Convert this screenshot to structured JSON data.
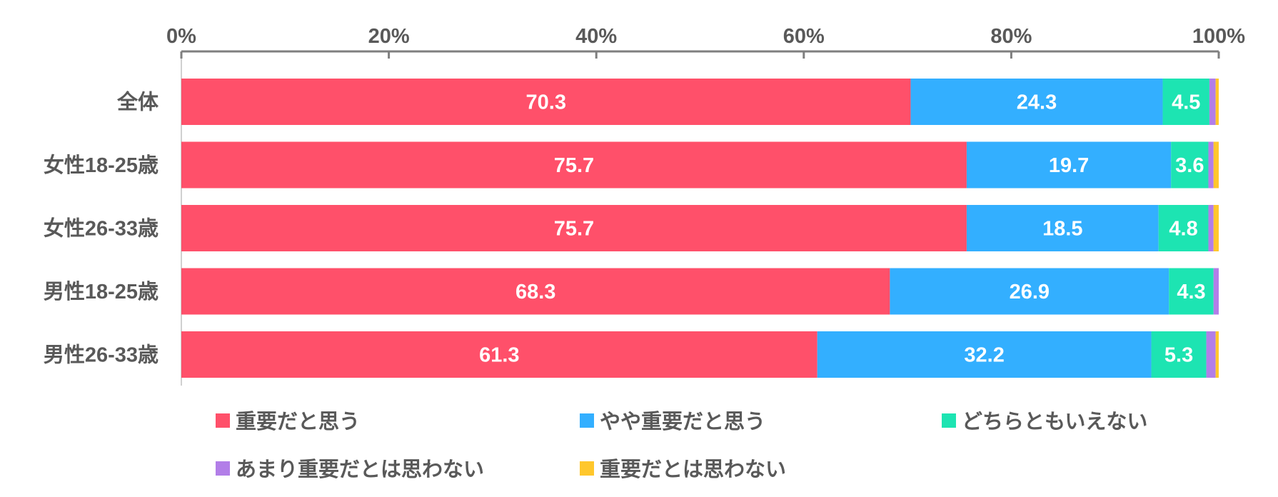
{
  "chart_data": {
    "type": "bar",
    "orientation": "horizontal",
    "stacked": true,
    "percent": true,
    "categories": [
      "全体",
      "女性18-25歳",
      "女性26-33歳",
      "男性18-25歳",
      "男性26-33歳"
    ],
    "series": [
      {
        "name": "重要だと思う",
        "color": "#FF506A",
        "values": [
          70.3,
          75.7,
          75.7,
          68.3,
          61.3
        ],
        "labels": [
          "70.3",
          "75.7",
          "75.7",
          "68.3",
          "61.3"
        ]
      },
      {
        "name": "やや重要だと思う",
        "color": "#33AFFF",
        "values": [
          24.3,
          19.7,
          18.5,
          26.9,
          32.2
        ],
        "labels": [
          "24.3",
          "19.7",
          "18.5",
          "26.9",
          "32.2"
        ]
      },
      {
        "name": "どちらともいえない",
        "color": "#1DE4B2",
        "values": [
          4.5,
          3.6,
          4.8,
          4.3,
          5.3
        ],
        "labels": [
          "4.5",
          "3.6",
          "4.8",
          "4.3",
          "5.3"
        ]
      },
      {
        "name": "あまり重要だとは思わない",
        "color": "#B27EE8",
        "values": [
          0.6,
          0.5,
          0.5,
          0.5,
          0.9
        ],
        "labels": [
          "",
          "",
          "",
          "",
          ""
        ]
      },
      {
        "name": "重要だとは思わない",
        "color": "#FFC72C",
        "values": [
          0.3,
          0.5,
          0.5,
          0.0,
          0.3
        ],
        "labels": [
          "",
          "",
          "",
          "",
          ""
        ]
      }
    ],
    "xlim": [
      0,
      100
    ],
    "xticks": [
      "0%",
      "20%",
      "40%",
      "60%",
      "80%",
      "100%"
    ],
    "xaxis_position": "top",
    "grid": false,
    "legend": "bottom"
  }
}
